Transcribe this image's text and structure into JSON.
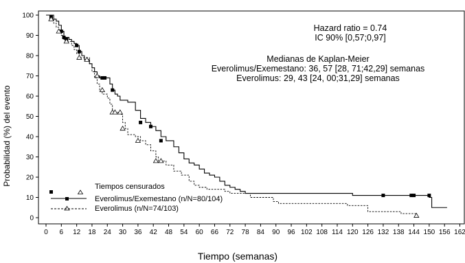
{
  "chart_data": {
    "type": "line",
    "xlabel": "Tiempo (semanas)",
    "ylabel": "Probabilidad (%) del evento",
    "xlim": [
      0,
      162
    ],
    "ylim": [
      0,
      100
    ],
    "x_ticks": [
      0,
      6,
      12,
      18,
      24,
      30,
      36,
      42,
      48,
      54,
      60,
      66,
      72,
      78,
      84,
      90,
      96,
      102,
      108,
      114,
      120,
      126,
      132,
      138,
      144,
      150,
      156,
      162
    ],
    "y_ticks": [
      0,
      10,
      20,
      30,
      40,
      50,
      60,
      70,
      80,
      90,
      100
    ],
    "grid": false,
    "annotations": {
      "hazard": "Hazard ratio = 0.74",
      "ic": "IC 90% [0,57;0,97]",
      "medianas_title": "Medianas de Kaplan-Meier",
      "median_combo": "Everolimus/Exemestano: 36, 57 [28, 71;42,29] semanas",
      "median_evero": "Everolimus: 29, 43 [24, 00;31,29] semanas"
    },
    "legend": {
      "placement": "bottom-left",
      "censor_label": "Tiempos censurados",
      "entries": [
        "Everolimus/Exemestano (n/N=80/104)",
        "Everolimus (n/N=74/103)"
      ]
    },
    "series": [
      {
        "name": "Everolimus/Exemestano (n/N=80/104)",
        "style": "solid",
        "marker": "square",
        "steps": [
          [
            0,
            100
          ],
          [
            3,
            98
          ],
          [
            4,
            97
          ],
          [
            5,
            95
          ],
          [
            6,
            92
          ],
          [
            7,
            89
          ],
          [
            9,
            88
          ],
          [
            10,
            87
          ],
          [
            11,
            86
          ],
          [
            12,
            85
          ],
          [
            13,
            82
          ],
          [
            14,
            80
          ],
          [
            15,
            78
          ],
          [
            17,
            76
          ],
          [
            18,
            74
          ],
          [
            19,
            72
          ],
          [
            20,
            70
          ],
          [
            21,
            69
          ],
          [
            25,
            66
          ],
          [
            26,
            63
          ],
          [
            27,
            61
          ],
          [
            28,
            60
          ],
          [
            29,
            58
          ],
          [
            32,
            57
          ],
          [
            35,
            53
          ],
          [
            37,
            49
          ],
          [
            39,
            47
          ],
          [
            41,
            45
          ],
          [
            43,
            43
          ],
          [
            45,
            40
          ],
          [
            47,
            38
          ],
          [
            50,
            35
          ],
          [
            52,
            32
          ],
          [
            54,
            29
          ],
          [
            56,
            27
          ],
          [
            58,
            26
          ],
          [
            60,
            24
          ],
          [
            62,
            22
          ],
          [
            64,
            21
          ],
          [
            66,
            20
          ],
          [
            68,
            18
          ],
          [
            70,
            16
          ],
          [
            72,
            15
          ],
          [
            74,
            14
          ],
          [
            76,
            13
          ],
          [
            78,
            12
          ],
          [
            120,
            11
          ],
          [
            150,
            10
          ],
          [
            151,
            5
          ],
          [
            157,
            5
          ]
        ],
        "censored": [
          [
            2,
            99
          ],
          [
            6,
            92
          ],
          [
            7,
            89
          ],
          [
            8,
            88
          ],
          [
            12,
            85
          ],
          [
            13,
            82
          ],
          [
            22,
            69
          ],
          [
            23,
            69
          ],
          [
            26,
            63
          ],
          [
            37,
            47
          ],
          [
            41,
            45
          ],
          [
            45,
            38
          ],
          [
            132,
            11
          ],
          [
            143,
            11
          ],
          [
            144,
            11
          ],
          [
            150,
            11
          ]
        ]
      },
      {
        "name": "Everolimus (n/N=74/103)",
        "style": "dashed",
        "marker": "triangle",
        "steps": [
          [
            0,
            100
          ],
          [
            2,
            98
          ],
          [
            3,
            96
          ],
          [
            4,
            94
          ],
          [
            5,
            92
          ],
          [
            6,
            90
          ],
          [
            7,
            88
          ],
          [
            8,
            87
          ],
          [
            10,
            85
          ],
          [
            11,
            83
          ],
          [
            12,
            81
          ],
          [
            13,
            79
          ],
          [
            17,
            76
          ],
          [
            18,
            72
          ],
          [
            19,
            69
          ],
          [
            20,
            66
          ],
          [
            21,
            63
          ],
          [
            22,
            61
          ],
          [
            24,
            59
          ],
          [
            25,
            56
          ],
          [
            26,
            52
          ],
          [
            29,
            51
          ],
          [
            30,
            47
          ],
          [
            31,
            44
          ],
          [
            32,
            41
          ],
          [
            35,
            40
          ],
          [
            37,
            38
          ],
          [
            39,
            36
          ],
          [
            41,
            33
          ],
          [
            43,
            30
          ],
          [
            44,
            28
          ],
          [
            47,
            26
          ],
          [
            50,
            23
          ],
          [
            53,
            21
          ],
          [
            56,
            18
          ],
          [
            58,
            16
          ],
          [
            60,
            15
          ],
          [
            63,
            14
          ],
          [
            70,
            13
          ],
          [
            72,
            12
          ],
          [
            80,
            10
          ],
          [
            89,
            8
          ],
          [
            91,
            7
          ],
          [
            100,
            7
          ],
          [
            118,
            6
          ],
          [
            126,
            3
          ],
          [
            139,
            2
          ],
          [
            145,
            2
          ]
        ],
        "censored": [
          [
            2,
            98
          ],
          [
            5,
            92
          ],
          [
            8,
            87
          ],
          [
            13,
            79
          ],
          [
            16,
            78
          ],
          [
            20,
            70
          ],
          [
            22,
            63
          ],
          [
            26,
            52
          ],
          [
            27,
            52
          ],
          [
            29,
            52
          ],
          [
            30,
            44
          ],
          [
            36,
            38
          ],
          [
            43,
            28
          ],
          [
            45,
            28
          ],
          [
            145,
            1
          ]
        ]
      }
    ]
  }
}
